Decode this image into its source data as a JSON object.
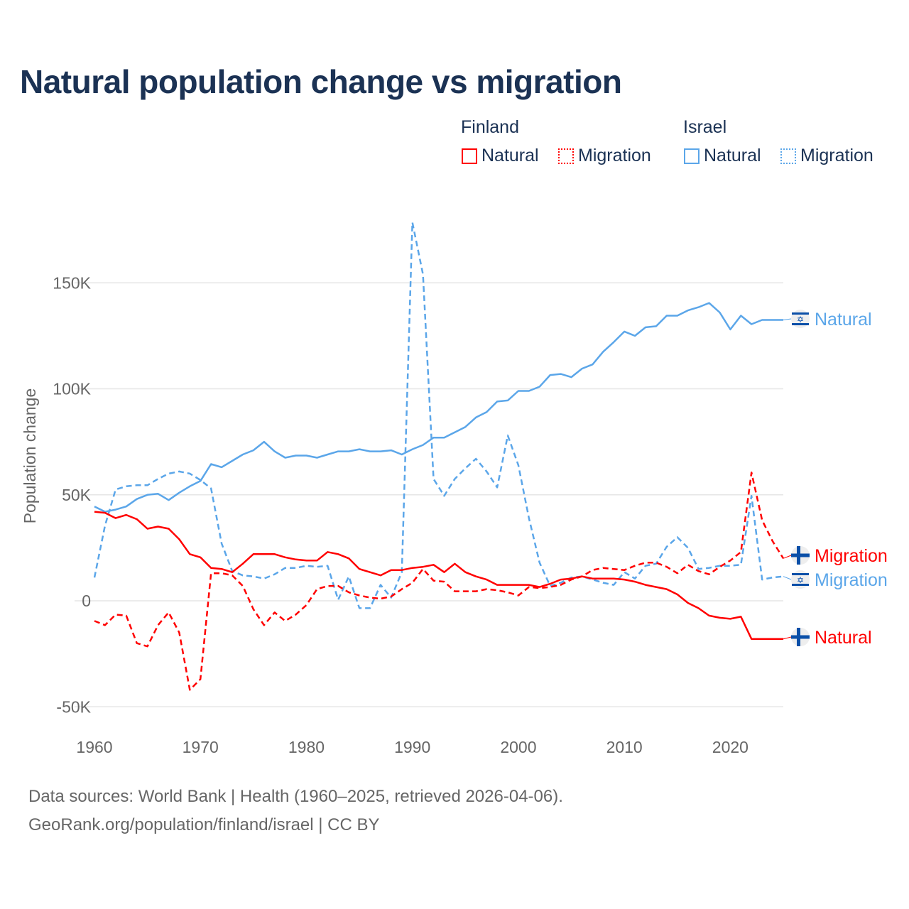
{
  "title": "Natural population change vs migration",
  "legend": {
    "groups": [
      {
        "name": "Finland",
        "items": [
          "Natural",
          "Migration"
        ]
      },
      {
        "name": "Israel",
        "items": [
          "Natural",
          "Migration"
        ]
      }
    ]
  },
  "footer": {
    "line1": "Data sources: World Bank | Health (1960–2025, retrieved 2026-04-06).",
    "line2": "GeoRank.org/population/finland/israel | CC BY"
  },
  "colors": {
    "finland": "#ff0000",
    "israel": "#5ba6e9",
    "title": "#1b3254",
    "flag_blue": "#0a4fa8"
  },
  "chart_data": {
    "type": "line",
    "title": "Natural population change vs migration",
    "ylabel": "Population change",
    "xlabel": "",
    "xlim": [
      1960,
      2025
    ],
    "ylim": [
      -50000,
      180000
    ],
    "x_ticks": [
      1960,
      1970,
      1980,
      1990,
      2000,
      2010,
      2020
    ],
    "x_tick_labels": [
      "1960",
      "1970",
      "1980",
      "1990",
      "2000",
      "2010",
      "2020"
    ],
    "y_ticks": [
      -50000,
      0,
      50000,
      100000,
      150000
    ],
    "y_tick_labels": [
      "-50K",
      "0",
      "50K",
      "100K",
      "150K"
    ],
    "grid": true,
    "legend_position": "top-right",
    "x_start": 1960,
    "series": [
      {
        "name": "Israel Natural",
        "country": "Israel",
        "kind": "Natural",
        "color": "#5ba6e9",
        "dash": false,
        "end_label": "Natural",
        "values_k": [
          44.5,
          42,
          43,
          44.5,
          48,
          50,
          50.5,
          47.5,
          51,
          54,
          56.5,
          64.5,
          63,
          66,
          69,
          71,
          75,
          70.5,
          67.5,
          68.5,
          68.5,
          67.5,
          69,
          70.5,
          70.5,
          71.5,
          70.5,
          70.5,
          71,
          69,
          71.5,
          73.5,
          77,
          77,
          79.5,
          82,
          86.5,
          89,
          94,
          94.5,
          99,
          99,
          101,
          106.5,
          107,
          105.5,
          109.5,
          111.5,
          117.5,
          122,
          127,
          125,
          129,
          129.5,
          134.5,
          134.5,
          137,
          138.5,
          140.5,
          136,
          128,
          134.5,
          130.5,
          132.5,
          132.5,
          132.5
        ]
      },
      {
        "name": "Israel Migration",
        "country": "Israel",
        "kind": "Migration",
        "color": "#5ba6e9",
        "dash": true,
        "end_label": "Migration",
        "values_k": [
          11,
          35.5,
          52.5,
          54,
          54.5,
          54.5,
          57.5,
          60,
          61,
          60,
          57,
          53,
          27,
          14,
          12,
          11.5,
          10.5,
          12.5,
          15.5,
          15.5,
          16.5,
          16,
          16.5,
          0.5,
          11.5,
          -3.5,
          -3.5,
          7.5,
          1.5,
          13.5,
          178.5,
          154,
          57.5,
          49.5,
          57.5,
          62.5,
          67,
          61,
          53.5,
          78,
          64,
          39,
          18,
          7,
          8.5,
          11,
          11.5,
          10,
          8.5,
          7.5,
          13.5,
          10.5,
          16.5,
          17.5,
          25.5,
          30,
          25,
          15,
          15.5,
          16.5,
          16.5,
          17,
          49.5,
          10,
          11,
          11.5
        ]
      },
      {
        "name": "Finland Natural",
        "country": "Finland",
        "kind": "Natural",
        "color": "#ff0000",
        "dash": false,
        "end_label": "Natural",
        "values_k": [
          42,
          41.5,
          39,
          40.5,
          38.5,
          34,
          35,
          34,
          29,
          22,
          20.5,
          15.5,
          15,
          13.5,
          17.5,
          22,
          22,
          22,
          20.5,
          19.5,
          19,
          19,
          23,
          22,
          20,
          15,
          13.5,
          12,
          14.5,
          14.5,
          15.5,
          16,
          17,
          13.5,
          17.5,
          13.5,
          11.5,
          10,
          7.5,
          7.5,
          7.5,
          7.5,
          6.5,
          8,
          10,
          10.5,
          11.5,
          10.5,
          10.5,
          10.5,
          10,
          9,
          7.5,
          6.5,
          5.5,
          3,
          -1,
          -3.5,
          -7,
          -8,
          -8.5,
          -7.5,
          -18,
          -18,
          -18,
          -18
        ]
      },
      {
        "name": "Finland Migration",
        "country": "Finland",
        "kind": "Migration",
        "color": "#ff0000",
        "dash": true,
        "end_label": "Migration",
        "values_k": [
          -9.5,
          -11.5,
          -6.5,
          -7,
          -20,
          -21.5,
          -11.5,
          -5.5,
          -15,
          -42,
          -37,
          13,
          13,
          12,
          7,
          -4,
          -11.5,
          -5.5,
          -9.5,
          -6.5,
          -2,
          5.5,
          7,
          7,
          4,
          2.5,
          1.5,
          1,
          2,
          5.5,
          8.5,
          15,
          9.5,
          9,
          4.5,
          4.5,
          4.5,
          5.5,
          5,
          4,
          2.5,
          6.5,
          6,
          6.5,
          7.5,
          10,
          11.5,
          14.5,
          15.5,
          15,
          14.5,
          16.5,
          18,
          18,
          16,
          13,
          17,
          14,
          12.5,
          16,
          19,
          23,
          60.5,
          38,
          28,
          20
        ]
      }
    ]
  }
}
